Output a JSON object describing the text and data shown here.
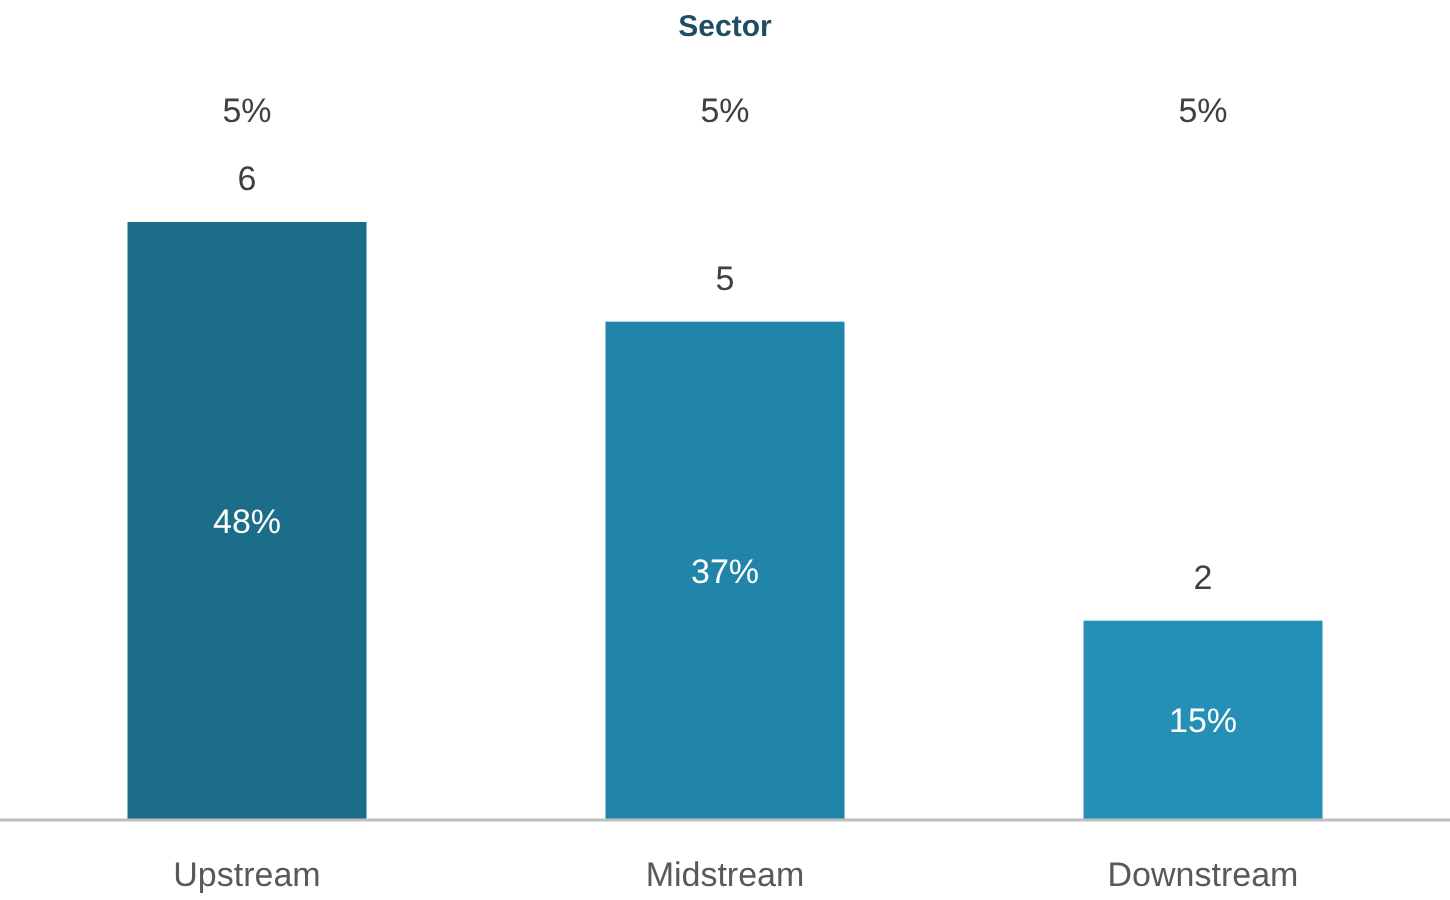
{
  "chart_data": {
    "type": "bar",
    "title": "Sector",
    "categories": [
      "Upstream",
      "Midstream",
      "Downstream"
    ],
    "values": [
      6,
      5,
      2
    ],
    "colors": [
      "#1b6d8a",
      "#2085a8",
      "#2590b5"
    ],
    "data_labels": true,
    "annotations": [
      "48%",
      "37%",
      "15%",
      "5%",
      "5%",
      "5%"
    ]
  }
}
